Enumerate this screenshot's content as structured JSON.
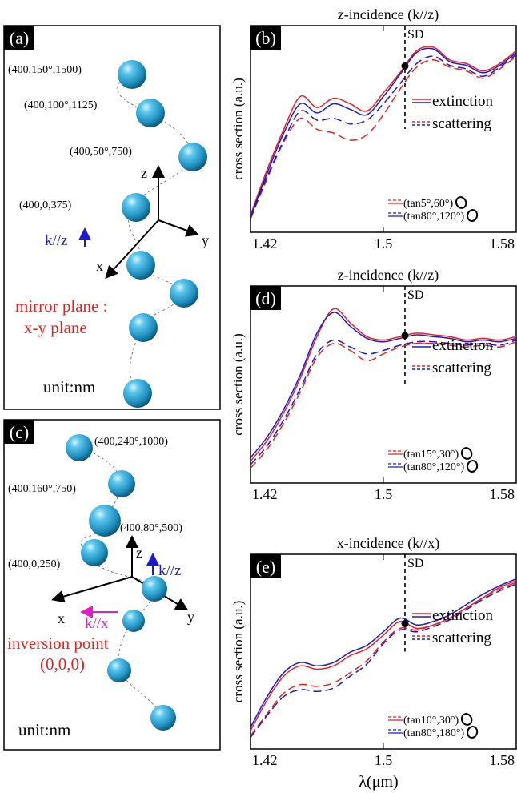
{
  "panel_a": {
    "tag": "(a)",
    "labels": [
      "(400,150°,1500)",
      "(400,100°,1125)",
      "(400,50°,750)",
      "(400,0,375)"
    ],
    "axis_x": "x",
    "axis_y": "y",
    "axis_z": "z",
    "k_label": "k//z",
    "note_line1": "mirror plane :",
    "note_line2": "x-y plane",
    "unit": "unit:nm"
  },
  "panel_c": {
    "tag": "(c)",
    "labels": [
      "(400,240°,1000)",
      "(400,160°,750)",
      "(400,80°,500)",
      "(400,0,250)"
    ],
    "axis_x": "x",
    "axis_y": "y",
    "axis_z": "z",
    "kz_label": "k//z",
    "kx_label": "k//x",
    "note_line1": "inversion point",
    "note_line2": "(0,0,0)",
    "unit": "unit:nm"
  },
  "colors": {
    "red": "#e8211d",
    "blue": "#1a1acc",
    "magenta": "#e020c0",
    "sphere": "#1f9cc9"
  },
  "common": {
    "ylabel": "cross section (a.u.)",
    "xlabel": "λ(μm)",
    "ticks": [
      "1.42",
      "1.5",
      "1.58"
    ],
    "sd": "SD",
    "legend_ext": "extinction",
    "legend_sca": "scattering"
  },
  "chart_data": [
    {
      "type": "line",
      "panel": "(b)",
      "title": "z-incidence (k//z)",
      "xlim": [
        1.42,
        1.58
      ],
      "sd_x": 1.513,
      "legend": [
        "(tan5°,60°)",
        "(tan80°,120°)"
      ],
      "x": [
        1.42,
        1.43,
        1.44,
        1.45,
        1.46,
        1.47,
        1.48,
        1.49,
        1.5,
        1.51,
        1.52,
        1.53,
        1.54,
        1.55,
        1.56,
        1.57,
        1.58
      ],
      "series": [
        {
          "name": "(tan5°,60°)",
          "kind": "extinction",
          "color": "red",
          "values": [
            0.05,
            0.3,
            0.52,
            0.7,
            0.64,
            0.69,
            0.66,
            0.62,
            0.72,
            0.83,
            0.95,
            0.97,
            0.9,
            0.88,
            0.84,
            0.88,
            0.95
          ]
        },
        {
          "name": "(tan80°,120°)",
          "kind": "extinction",
          "color": "blue",
          "values": [
            0.04,
            0.28,
            0.5,
            0.66,
            0.61,
            0.66,
            0.63,
            0.6,
            0.7,
            0.82,
            0.94,
            0.96,
            0.89,
            0.87,
            0.83,
            0.87,
            0.94
          ]
        },
        {
          "name": "(tan5°,60°)",
          "kind": "scattering",
          "color": "red",
          "values": [
            0.03,
            0.25,
            0.45,
            0.58,
            0.52,
            0.5,
            0.46,
            0.49,
            0.6,
            0.74,
            0.86,
            0.9,
            0.86,
            0.84,
            0.8,
            0.85,
            0.92
          ]
        },
        {
          "name": "(tan80°,120°)",
          "kind": "scattering",
          "color": "blue",
          "values": [
            0.03,
            0.26,
            0.46,
            0.62,
            0.57,
            0.58,
            0.55,
            0.57,
            0.66,
            0.77,
            0.88,
            0.92,
            0.87,
            0.85,
            0.81,
            0.86,
            0.93
          ]
        }
      ]
    },
    {
      "type": "line",
      "panel": "(d)",
      "title": "z-incidence (k//z)",
      "xlim": [
        1.42,
        1.58
      ],
      "sd_x": 1.513,
      "legend": [
        "(tan15°,30°)",
        "(tan80°,120°)"
      ],
      "x": [
        1.42,
        1.43,
        1.44,
        1.45,
        1.46,
        1.47,
        1.48,
        1.49,
        1.5,
        1.51,
        1.52,
        1.53,
        1.54,
        1.55,
        1.56,
        1.57,
        1.58
      ],
      "series": [
        {
          "name": "(tan15°,30°)",
          "kind": "extinction",
          "color": "red",
          "values": [
            0.08,
            0.2,
            0.36,
            0.56,
            0.8,
            0.96,
            0.88,
            0.8,
            0.78,
            0.8,
            0.82,
            0.81,
            0.8,
            0.78,
            0.79,
            0.78,
            0.8
          ]
        },
        {
          "name": "(tan80°,120°)",
          "kind": "extinction",
          "color": "blue",
          "values": [
            0.1,
            0.22,
            0.38,
            0.58,
            0.82,
            0.94,
            0.86,
            0.79,
            0.77,
            0.79,
            0.81,
            0.8,
            0.79,
            0.77,
            0.78,
            0.77,
            0.79
          ]
        },
        {
          "name": "(tan15°,30°)",
          "kind": "scattering",
          "color": "red",
          "values": [
            0.04,
            0.15,
            0.3,
            0.48,
            0.68,
            0.76,
            0.72,
            0.66,
            0.7,
            0.74,
            0.76,
            0.76,
            0.75,
            0.74,
            0.75,
            0.74,
            0.77
          ]
        },
        {
          "name": "(tan80°,120°)",
          "kind": "scattering",
          "color": "blue",
          "values": [
            0.06,
            0.17,
            0.32,
            0.5,
            0.7,
            0.78,
            0.74,
            0.7,
            0.72,
            0.75,
            0.77,
            0.77,
            0.76,
            0.75,
            0.76,
            0.75,
            0.78
          ]
        }
      ]
    },
    {
      "type": "line",
      "panel": "(e)",
      "title": "x-incidence (k//x)",
      "xlim": [
        1.42,
        1.58
      ],
      "sd_x": 1.513,
      "legend": [
        "(tan10°,30°)",
        "(tan80°,180°)"
      ],
      "x": [
        1.42,
        1.43,
        1.44,
        1.45,
        1.46,
        1.47,
        1.48,
        1.49,
        1.5,
        1.51,
        1.52,
        1.53,
        1.54,
        1.55,
        1.56,
        1.57,
        1.58
      ],
      "series": [
        {
          "name": "(tan10°,30°)",
          "kind": "extinction",
          "color": "red",
          "values": [
            0.06,
            0.24,
            0.38,
            0.44,
            0.42,
            0.44,
            0.5,
            0.54,
            0.62,
            0.7,
            0.66,
            0.68,
            0.72,
            0.78,
            0.84,
            0.9,
            0.94
          ]
        },
        {
          "name": "(tan80°,180°)",
          "kind": "extinction",
          "color": "blue",
          "values": [
            0.08,
            0.26,
            0.4,
            0.46,
            0.44,
            0.46,
            0.52,
            0.56,
            0.64,
            0.72,
            0.68,
            0.7,
            0.74,
            0.8,
            0.86,
            0.91,
            0.95
          ]
        },
        {
          "name": "(tan10°,30°)",
          "kind": "scattering",
          "color": "red",
          "values": [
            0.03,
            0.16,
            0.28,
            0.33,
            0.32,
            0.34,
            0.4,
            0.47,
            0.58,
            0.66,
            0.65,
            0.68,
            0.72,
            0.78,
            0.84,
            0.89,
            0.93
          ]
        },
        {
          "name": "(tan80°,180°)",
          "kind": "scattering",
          "color": "blue",
          "values": [
            0.02,
            0.15,
            0.26,
            0.3,
            0.29,
            0.31,
            0.38,
            0.45,
            0.57,
            0.65,
            0.64,
            0.67,
            0.71,
            0.77,
            0.83,
            0.88,
            0.92
          ]
        }
      ]
    }
  ]
}
